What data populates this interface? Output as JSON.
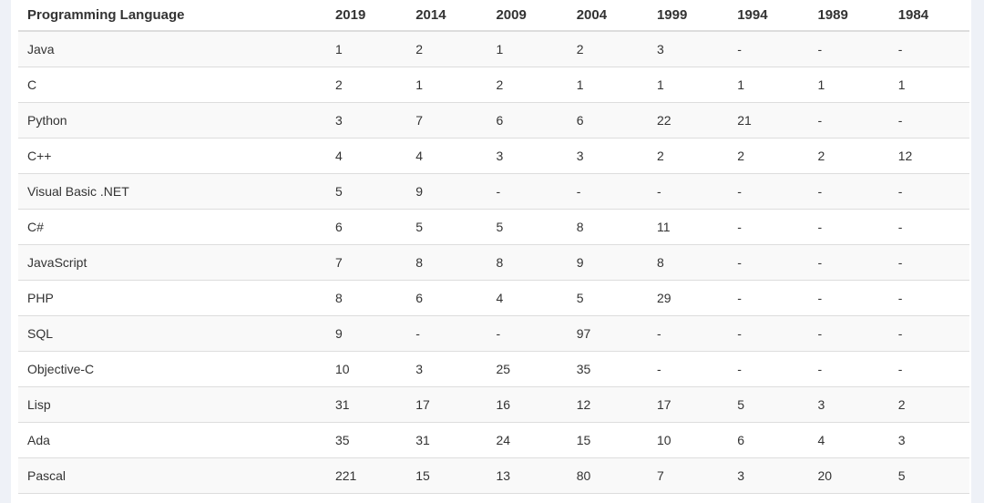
{
  "table": {
    "headers": [
      "Programming Language",
      "2019",
      "2014",
      "2009",
      "2004",
      "1999",
      "1994",
      "1989",
      "1984"
    ],
    "rows": [
      [
        "Java",
        "1",
        "2",
        "1",
        "2",
        "3",
        "-",
        "-",
        "-"
      ],
      [
        "C",
        "2",
        "1",
        "2",
        "1",
        "1",
        "1",
        "1",
        "1"
      ],
      [
        "Python",
        "3",
        "7",
        "6",
        "6",
        "22",
        "21",
        "-",
        "-"
      ],
      [
        "C++",
        "4",
        "4",
        "3",
        "3",
        "2",
        "2",
        "2",
        "12"
      ],
      [
        "Visual Basic .NET",
        "5",
        "9",
        "-",
        "-",
        "-",
        "-",
        "-",
        "-"
      ],
      [
        "C#",
        "6",
        "5",
        "5",
        "8",
        "11",
        "-",
        "-",
        "-"
      ],
      [
        "JavaScript",
        "7",
        "8",
        "8",
        "9",
        "8",
        "-",
        "-",
        "-"
      ],
      [
        "PHP",
        "8",
        "6",
        "4",
        "5",
        "29",
        "-",
        "-",
        "-"
      ],
      [
        "SQL",
        "9",
        "-",
        "-",
        "97",
        "-",
        "-",
        "-",
        "-"
      ],
      [
        "Objective-C",
        "10",
        "3",
        "25",
        "35",
        "-",
        "-",
        "-",
        "-"
      ],
      [
        "Lisp",
        "31",
        "17",
        "16",
        "12",
        "17",
        "5",
        "3",
        "2"
      ],
      [
        "Ada",
        "35",
        "31",
        "24",
        "15",
        "10",
        "6",
        "4",
        "3"
      ],
      [
        "Pascal",
        "221",
        "15",
        "13",
        "80",
        "7",
        "3",
        "20",
        "5"
      ]
    ]
  },
  "colors": {
    "stripe": "#f9f9f9",
    "border": "#dddddd",
    "rail": "#eef1f7",
    "text": "#333333"
  }
}
